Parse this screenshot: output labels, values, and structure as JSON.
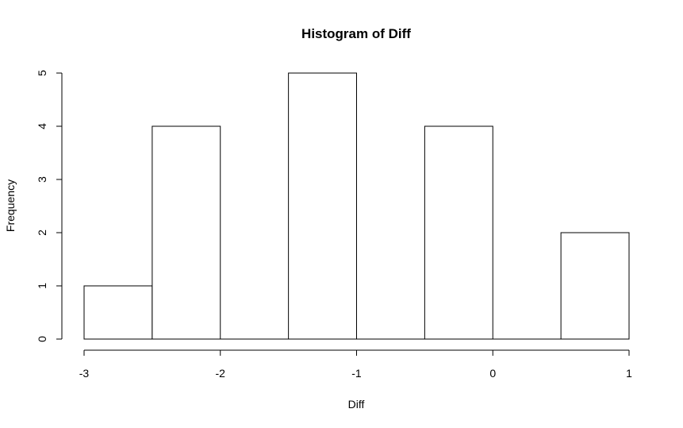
{
  "chart_data": {
    "type": "bar",
    "title": "Histogram of Diff",
    "xlabel": "Diff",
    "ylabel": "Frequency",
    "bins": [
      {
        "x0": -3.0,
        "x1": -2.5,
        "count": 1
      },
      {
        "x0": -2.5,
        "x1": -2.0,
        "count": 4
      },
      {
        "x0": -2.0,
        "x1": -1.5,
        "count": 0
      },
      {
        "x0": -1.5,
        "x1": -1.0,
        "count": 5
      },
      {
        "x0": -1.0,
        "x1": -0.5,
        "count": 0
      },
      {
        "x0": -0.5,
        "x1": 0.0,
        "count": 4
      },
      {
        "x0": 0.0,
        "x1": 0.5,
        "count": 0
      },
      {
        "x0": 0.5,
        "x1": 1.0,
        "count": 2
      }
    ],
    "xlim": [
      -3,
      1
    ],
    "ylim": [
      0,
      5
    ],
    "x_ticks": [
      "-3",
      "-2",
      "-1",
      "0",
      "1"
    ],
    "y_ticks": [
      "0",
      "1",
      "2",
      "3",
      "4",
      "5"
    ],
    "grid": false,
    "bar_fill": "#ffffff",
    "bar_stroke": "#000000"
  }
}
